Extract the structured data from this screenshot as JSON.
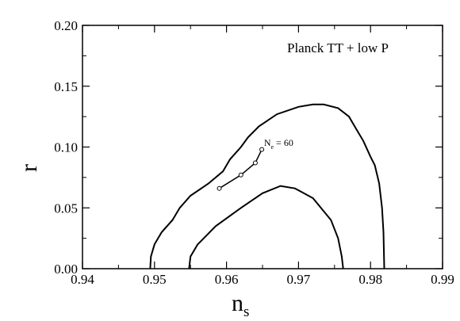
{
  "chart_data": {
    "type": "line",
    "title": "",
    "xlabel": "n",
    "xlabel_subscript": "s",
    "ylabel": "r",
    "xlim": [
      0.94,
      0.99
    ],
    "ylim": [
      0.0,
      0.2
    ],
    "x_ticks": [
      0.94,
      0.95,
      0.96,
      0.97,
      0.98,
      0.99
    ],
    "x_tick_labels": [
      "0.94",
      "0.95",
      "0.96",
      "0.97",
      "0.98",
      "0.99"
    ],
    "y_ticks": [
      0.0,
      0.05,
      0.1,
      0.15,
      0.2
    ],
    "y_tick_labels": [
      "0.00",
      "0.05",
      "0.10",
      "0.15",
      "0.20"
    ],
    "grid": false,
    "annotation": "Planck TT + low P",
    "contours": [
      {
        "level": "outer",
        "points": [
          [
            0.9494,
            0.0
          ],
          [
            0.9495,
            0.01
          ],
          [
            0.95,
            0.02
          ],
          [
            0.951,
            0.03
          ],
          [
            0.9525,
            0.04
          ],
          [
            0.9535,
            0.05
          ],
          [
            0.955,
            0.06
          ],
          [
            0.9575,
            0.07
          ],
          [
            0.9595,
            0.08
          ],
          [
            0.9605,
            0.09
          ],
          [
            0.962,
            0.1
          ],
          [
            0.963,
            0.108
          ],
          [
            0.9645,
            0.117
          ],
          [
            0.967,
            0.127
          ],
          [
            0.97,
            0.133
          ],
          [
            0.972,
            0.135
          ],
          [
            0.9735,
            0.135
          ],
          [
            0.9755,
            0.132
          ],
          [
            0.977,
            0.125
          ],
          [
            0.978,
            0.115
          ],
          [
            0.979,
            0.105
          ],
          [
            0.98,
            0.092
          ],
          [
            0.9806,
            0.085
          ],
          [
            0.9812,
            0.07
          ],
          [
            0.9816,
            0.05
          ],
          [
            0.9818,
            0.03
          ],
          [
            0.9819,
            0.0
          ]
        ]
      },
      {
        "level": "inner",
        "points": [
          [
            0.9548,
            0.0
          ],
          [
            0.955,
            0.01
          ],
          [
            0.956,
            0.02
          ],
          [
            0.9585,
            0.035
          ],
          [
            0.962,
            0.05
          ],
          [
            0.965,
            0.062
          ],
          [
            0.9675,
            0.068
          ],
          [
            0.9695,
            0.066
          ],
          [
            0.972,
            0.058
          ],
          [
            0.9745,
            0.04
          ],
          [
            0.9755,
            0.025
          ],
          [
            0.976,
            0.01
          ],
          [
            0.9762,
            0.0
          ]
        ]
      }
    ],
    "series": [
      {
        "name": "",
        "x": [
          0.959,
          0.962,
          0.964,
          0.9649
        ],
        "y": [
          0.066,
          0.077,
          0.087,
          0.098
        ]
      }
    ],
    "point_label": {
      "text": "N",
      "subscript": "e",
      "suffix": " = 60",
      "x": 0.9652,
      "y": 0.101
    }
  }
}
